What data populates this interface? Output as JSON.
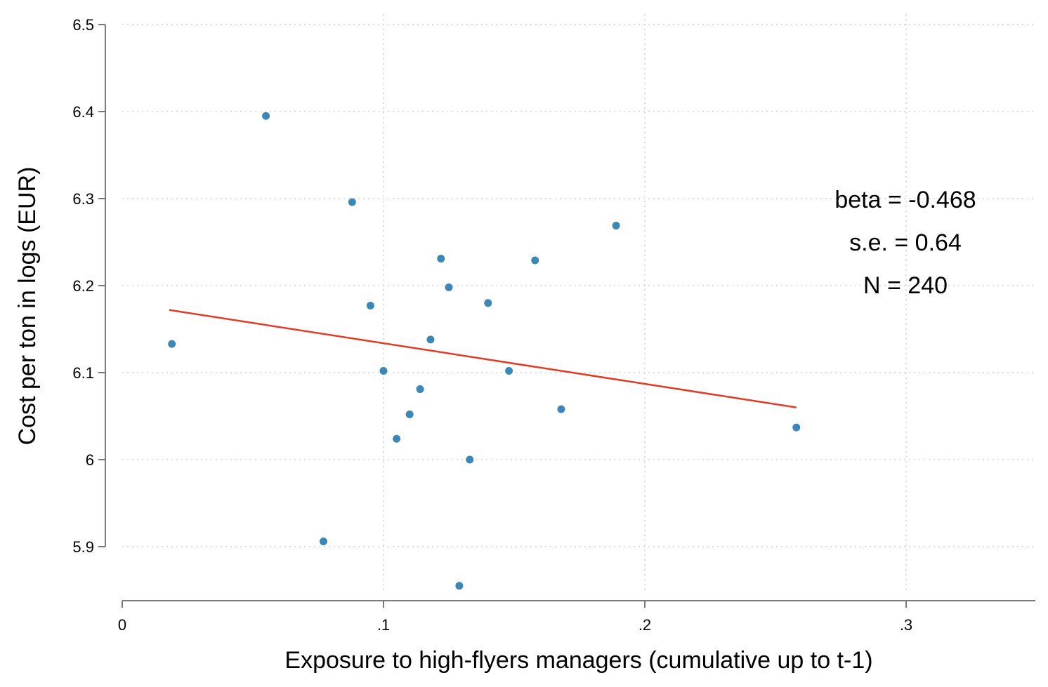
{
  "chart_data": {
    "type": "scatter",
    "title": "",
    "xlabel": "Exposure to high-flyers managers (cumulative up to t-1)",
    "ylabel": "Cost per ton in logs (EUR)",
    "xlim": [
      0,
      0.35
    ],
    "ylim": [
      5.85,
      6.5
    ],
    "x_ticks": [
      {
        "value": 0,
        "label": "0"
      },
      {
        "value": 0.1,
        "label": ".1"
      },
      {
        "value": 0.2,
        "label": ".2"
      },
      {
        "value": 0.3,
        "label": ".3"
      }
    ],
    "y_ticks": [
      {
        "value": 5.9,
        "label": "5.9"
      },
      {
        "value": 6.0,
        "label": "6"
      },
      {
        "value": 6.1,
        "label": "6.1"
      },
      {
        "value": 6.2,
        "label": "6.2"
      },
      {
        "value": 6.3,
        "label": "6.3"
      },
      {
        "value": 6.4,
        "label": "6.4"
      },
      {
        "value": 6.5,
        "label": "6.5"
      }
    ],
    "grid": true,
    "colors": {
      "points": "#3a87b8",
      "fit_line": "#e33a24",
      "axis": "#7a7a7a",
      "grid": "#d0d0d0"
    },
    "series": [
      {
        "points": [
          {
            "x": 0.019,
            "y": 6.133
          },
          {
            "x": 0.055,
            "y": 6.395
          },
          {
            "x": 0.077,
            "y": 5.906
          },
          {
            "x": 0.088,
            "y": 6.296
          },
          {
            "x": 0.095,
            "y": 6.177
          },
          {
            "x": 0.1,
            "y": 6.102
          },
          {
            "x": 0.105,
            "y": 6.024
          },
          {
            "x": 0.11,
            "y": 6.052
          },
          {
            "x": 0.114,
            "y": 6.081
          },
          {
            "x": 0.118,
            "y": 6.138
          },
          {
            "x": 0.122,
            "y": 6.231
          },
          {
            "x": 0.125,
            "y": 6.198
          },
          {
            "x": 0.129,
            "y": 5.855
          },
          {
            "x": 0.133,
            "y": 6.0
          },
          {
            "x": 0.14,
            "y": 6.18
          },
          {
            "x": 0.148,
            "y": 6.102
          },
          {
            "x": 0.158,
            "y": 6.229
          },
          {
            "x": 0.168,
            "y": 6.058
          },
          {
            "x": 0.189,
            "y": 6.269
          },
          {
            "x": 0.258,
            "y": 6.037
          }
        ]
      }
    ],
    "fit_line": {
      "x": [
        0.018,
        0.258
      ],
      "y": [
        6.172,
        6.06
      ]
    },
    "annotations": [
      "beta = -0.468",
      "s.e. = 0.64",
      "N = 240"
    ]
  }
}
